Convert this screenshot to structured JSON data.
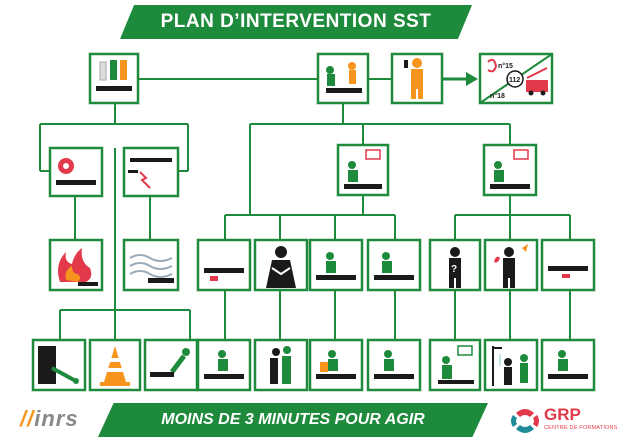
{
  "header": {
    "title": "PLAN D’INTERVENTION SST"
  },
  "footer": {
    "slogan": "MOINS DE 3 MINUTES POUR AGIR"
  },
  "alert_panel": {
    "label_15": "n°15",
    "label_112": "112",
    "label_18": "n°18"
  },
  "logos": {
    "inrs": "inrs",
    "grp_title": "GRP",
    "grp_subtitle": "CENTRE DE FORMATIONS"
  },
  "colors": {
    "green": "#1e8a3c",
    "black": "#1a1a1a",
    "orange": "#f7941d",
    "red": "#e23a4a"
  }
}
